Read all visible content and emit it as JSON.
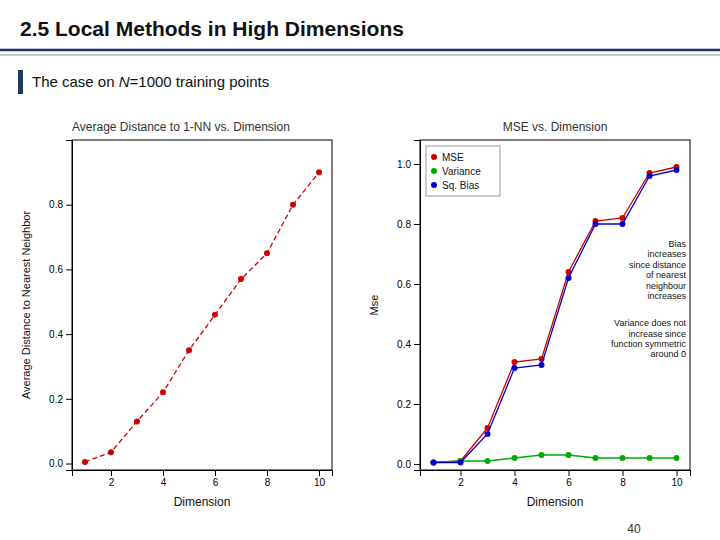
{
  "title": "2.5 Local Methods in High Dimensions",
  "subtitle": [
    "The case on ",
    "N",
    "=1000 training points"
  ],
  "annotations": [
    "40"
  ],
  "chart_data": [
    {
      "type": "line",
      "title": "Average Distance to 1-NN vs. Dimension",
      "x_label": "Dimension",
      "y_label": "Average Distance to Nearest Neighbor",
      "x": [
        1,
        2,
        3,
        4,
        5,
        6,
        7,
        8,
        9,
        10
      ],
      "values": [
        0.005,
        0.035,
        0.13,
        0.22,
        0.35,
        0.46,
        0.57,
        0.65,
        0.8,
        0.9
      ],
      "color": "#CC0000",
      "marker": "circle",
      "line_style": "dashed",
      "xlim": [
        0.5,
        10.5
      ],
      "ylim": [
        -0.02,
        1.0
      ],
      "xticks": [
        2,
        4,
        6,
        8,
        10
      ],
      "yticks": [
        {
          "value": 0.0,
          "label": "0.0"
        },
        0.2,
        0.4,
        0.6,
        0.8
      ],
      "grid": false
    },
    {
      "type": "line",
      "title": "MSE vs. Dimension",
      "x_label": "Dimension",
      "y_label": "Mse",
      "x": [
        1,
        2,
        3,
        4,
        5,
        6,
        7,
        8,
        9,
        10
      ],
      "series": [
        {
          "name": "MSE",
          "color": "#CC0000",
          "values": [
            0.005,
            0.01,
            0.12,
            0.34,
            0.35,
            0.64,
            0.81,
            0.82,
            0.97,
            0.99
          ]
        },
        {
          "name": "Variance",
          "color": "#00AA00",
          "values": [
            0.005,
            0.01,
            0.01,
            0.02,
            0.03,
            0.03,
            0.02,
            0.02,
            0.02,
            0.02
          ]
        },
        {
          "name": "Sq. Bias",
          "color": "#0000CC",
          "values": [
            0.005,
            0.005,
            0.1,
            0.32,
            0.33,
            0.62,
            0.8,
            0.8,
            0.96,
            0.98
          ]
        }
      ],
      "marker": "circle",
      "line_style": "solid",
      "legend": "upper left",
      "xlim": [
        0.5,
        10.5
      ],
      "ylim": [
        -0.02,
        1.08
      ],
      "xticks": [
        2,
        4,
        6,
        8,
        10
      ],
      "yticks": [
        {
          "value": 0.0,
          "label": "0.0"
        },
        0.2,
        0.4,
        0.6,
        0.8,
        {
          "value": 1.0,
          "label": "1.0"
        }
      ],
      "grid": false,
      "annotations": [
        "Bias\nincreases\nsince distance\nof nearest\nneighbour\nincreases",
        "Variance does not\nincrease since\nfunction symmetric\naround 0"
      ]
    }
  ]
}
